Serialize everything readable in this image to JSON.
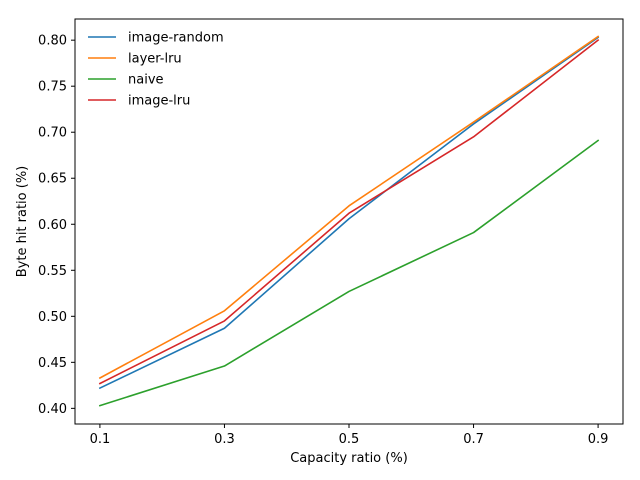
{
  "chart_data": {
    "type": "line",
    "title": "",
    "xlabel": "Capacity ratio (%)",
    "ylabel": "Byte hit ratio (%)",
    "x": [
      0.1,
      0.3,
      0.5,
      0.7,
      0.9
    ],
    "x_tick_labels": [
      "0.1",
      "0.3",
      "0.5",
      "0.7",
      "0.9"
    ],
    "xlim": [
      0.06,
      0.94
    ],
    "ylim": [
      0.383,
      0.823
    ],
    "y_ticks": [
      0.4,
      0.45,
      0.5,
      0.55,
      0.6,
      0.65,
      0.7,
      0.75,
      0.8
    ],
    "y_tick_labels": [
      "0.40",
      "0.45",
      "0.50",
      "0.55",
      "0.60",
      "0.65",
      "0.70",
      "0.75",
      "0.80"
    ],
    "grid": false,
    "legend": "top-left",
    "series": [
      {
        "name": "image-random",
        "color": "#1f77b4",
        "values": [
          0.422,
          0.487,
          0.606,
          0.709,
          0.803
        ]
      },
      {
        "name": "layer-lru",
        "color": "#ff7f0e",
        "values": [
          0.433,
          0.506,
          0.62,
          0.711,
          0.804
        ]
      },
      {
        "name": "naive",
        "color": "#2ca02c",
        "values": [
          0.403,
          0.446,
          0.527,
          0.591,
          0.691
        ]
      },
      {
        "name": "image-lru",
        "color": "#d62728",
        "values": [
          0.427,
          0.495,
          0.612,
          0.695,
          0.8
        ]
      }
    ]
  }
}
